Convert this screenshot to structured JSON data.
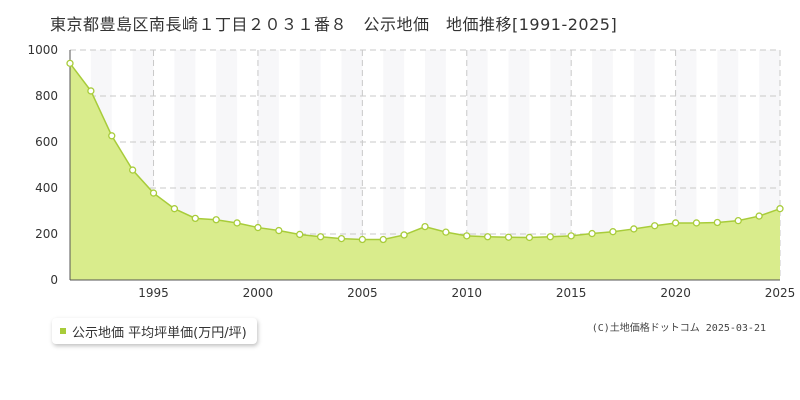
{
  "chart_data": {
    "type": "area",
    "title": "東京都豊島区南長崎１丁目２０３１番８　公示地価　地価推移[1991-2025]",
    "xlabel": "",
    "ylabel": "",
    "x": [
      1991,
      1992,
      1993,
      1994,
      1995,
      1996,
      1997,
      1998,
      1999,
      2000,
      2001,
      2002,
      2003,
      2004,
      2005,
      2006,
      2007,
      2008,
      2009,
      2010,
      2011,
      2012,
      2013,
      2014,
      2015,
      2016,
      2017,
      2018,
      2019,
      2020,
      2021,
      2022,
      2023,
      2024,
      2025
    ],
    "series": [
      {
        "name": "公示地価 平均坪単価(万円/坪)",
        "values": [
          942,
          822,
          627,
          478,
          378,
          310,
          268,
          262,
          248,
          228,
          215,
          198,
          188,
          180,
          176,
          176,
          196,
          232,
          208,
          192,
          188,
          186,
          185,
          188,
          192,
          202,
          210,
          222,
          236,
          248,
          248,
          250,
          258,
          278,
          310
        ]
      }
    ],
    "ylim": [
      0,
      1000
    ],
    "yticks": [
      0,
      200,
      400,
      600,
      800,
      1000
    ],
    "xticks": [
      1995,
      2000,
      2005,
      2010,
      2015,
      2020,
      2025
    ],
    "grid": true,
    "legend_position": "bottom-left"
  },
  "copyright": "(C)土地価格ドットコム 2025-03-21",
  "colors": {
    "area_fill": "#d9ec8c",
    "line": "#a8cc3a",
    "marker_fill": "#ffffff",
    "grid": "#c8c8c8",
    "plot_bg_stripe": "#f7f7f9"
  }
}
